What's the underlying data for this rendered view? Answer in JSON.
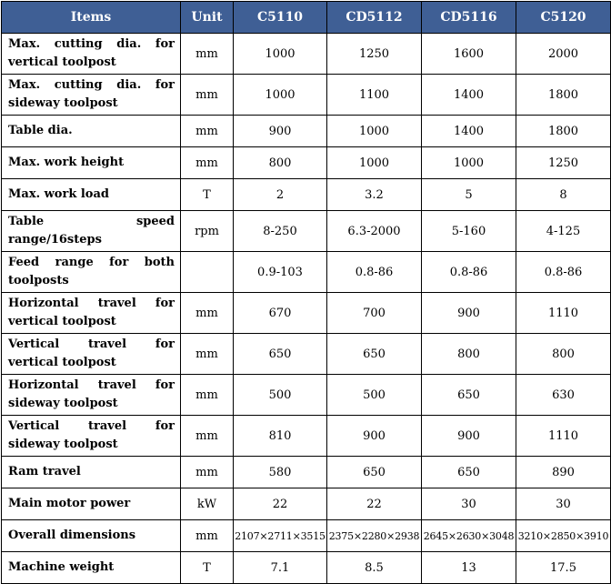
{
  "table": {
    "headers": [
      "Items",
      "Unit",
      "C5110",
      "CD5112",
      "CD5116",
      "C5120"
    ],
    "rows": [
      {
        "item": "Max. cutting dia. for vertical toolpost",
        "unit": "mm",
        "values": [
          "1000",
          "1250",
          "1600",
          "2000"
        ]
      },
      {
        "item": "Max. cutting dia. for sideway toolpost",
        "unit": "mm",
        "values": [
          "1000",
          "1100",
          "1400",
          "1800"
        ]
      },
      {
        "item": "Table dia.",
        "unit": "mm",
        "values": [
          "900",
          "1000",
          "1400",
          "1800"
        ]
      },
      {
        "item": "Max. work height",
        "unit": "mm",
        "values": [
          "800",
          "1000",
          "1000",
          "1250"
        ]
      },
      {
        "item": "Max. work load",
        "unit": "T",
        "values": [
          "2",
          "3.2",
          "5",
          "8"
        ]
      },
      {
        "item": "Table speed range/16steps",
        "unit": "rpm",
        "values": [
          "8-250",
          "6.3-2000",
          "5-160",
          "4-125"
        ]
      },
      {
        "item": "Feed range for both toolposts",
        "unit": "",
        "values": [
          "0.9-103",
          "0.8-86",
          "0.8-86",
          "0.8-86"
        ]
      },
      {
        "item": "Horizontal travel for vertical toolpost",
        "unit": "mm",
        "values": [
          "670",
          "700",
          "900",
          "1110"
        ]
      },
      {
        "item": "Vertical travel for vertical toolpost",
        "unit": "mm",
        "values": [
          "650",
          "650",
          "800",
          "800"
        ]
      },
      {
        "item": "Horizontal travel for sideway toolpost",
        "unit": "mm",
        "values": [
          "500",
          "500",
          "650",
          "630"
        ]
      },
      {
        "item": "Vertical travel for sideway toolpost",
        "unit": "mm",
        "values": [
          "810",
          "900",
          "900",
          "1110"
        ]
      },
      {
        "item": "Ram travel",
        "unit": "mm",
        "values": [
          "580",
          "650",
          "650",
          "890"
        ]
      },
      {
        "item": "Main motor power",
        "unit": "kW",
        "values": [
          "22",
          "22",
          "30",
          "30"
        ]
      },
      {
        "item": "Overall dimensions",
        "unit": "mm",
        "values": [
          "2107×2711×3515",
          "2375×2280×2938",
          "2645×2630×3048",
          "3210×2850×3910"
        ]
      },
      {
        "item": "Machine weight",
        "unit": "T",
        "values": [
          "7.1",
          "8.5",
          "13",
          "17.5"
        ]
      }
    ]
  }
}
